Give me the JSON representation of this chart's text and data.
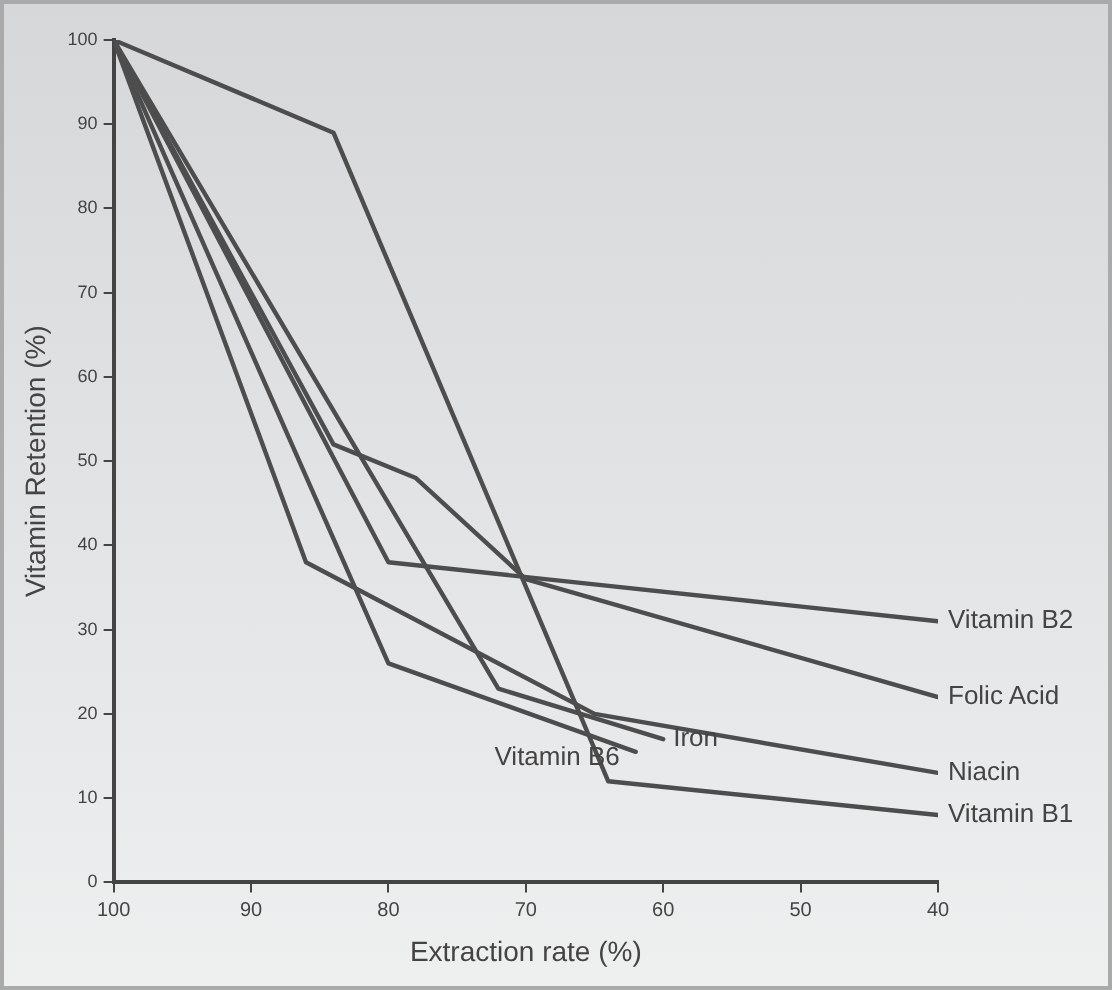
{
  "chart_data": {
    "type": "line",
    "xlabel": "Extraction rate (%)",
    "ylabel": "Vitamin Retention (%)",
    "xlim": [
      100,
      40
    ],
    "xticks": [
      100,
      90,
      80,
      70,
      60,
      50,
      40
    ],
    "ylim": [
      0,
      100
    ],
    "yticks": [
      0,
      10,
      20,
      30,
      40,
      50,
      60,
      70,
      80,
      90,
      100
    ],
    "grid": false,
    "legend": false,
    "marker": "none",
    "line_style": "solid",
    "series": [
      {
        "name": "Vitamin B2",
        "color": "#4d4d4d",
        "x": [
          100,
          80,
          40
        ],
        "values": [
          100,
          38,
          31
        ]
      },
      {
        "name": "Folic Acid",
        "color": "#4d4d4d",
        "x": [
          100,
          84,
          78,
          70,
          40
        ],
        "values": [
          100,
          52,
          48,
          36,
          22
        ]
      },
      {
        "name": "Niacin",
        "color": "#4d4d4d",
        "x": [
          100,
          86,
          65,
          40
        ],
        "values": [
          100,
          38,
          20,
          13
        ]
      },
      {
        "name": "Vitamin B1",
        "color": "#4d4d4d",
        "x": [
          100,
          84,
          64,
          40
        ],
        "values": [
          100,
          89,
          12,
          8
        ]
      },
      {
        "name": "Iron",
        "color": "#4d4d4d",
        "x": [
          100,
          72,
          60
        ],
        "values": [
          100,
          23,
          17
        ]
      },
      {
        "name": "Vitamin B6",
        "color": "#4d4d4d",
        "x": [
          100,
          80,
          62
        ],
        "values": [
          100,
          26,
          15.5
        ]
      }
    ]
  }
}
